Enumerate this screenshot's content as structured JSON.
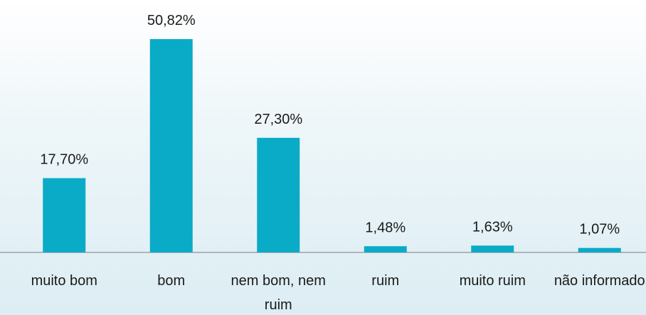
{
  "chart_data": {
    "type": "bar",
    "categories": [
      "muito bom",
      "bom",
      "nem bom, nem ruim",
      "ruim",
      "muito ruim",
      "não informado"
    ],
    "values": [
      17.7,
      50.82,
      27.3,
      1.48,
      1.63,
      1.07
    ],
    "value_labels": [
      "17,70%",
      "50,82%",
      "27,30%",
      "1,48%",
      "1,63%",
      "1,07%"
    ],
    "color": "#0aabc7"
  }
}
